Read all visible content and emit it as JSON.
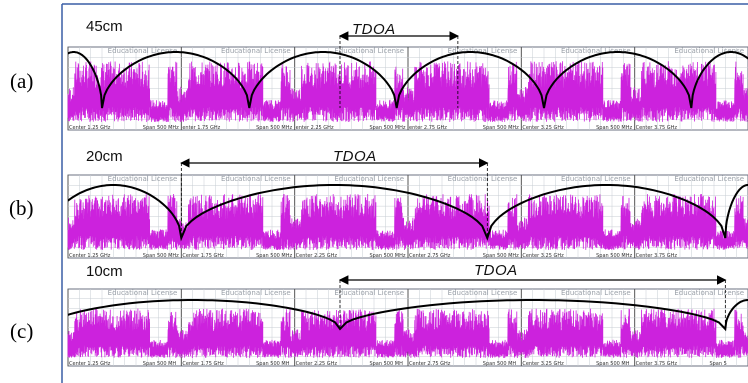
{
  "figure": {
    "watermark": "Educational License",
    "panels": [
      {
        "letter": "(a)",
        "distance": "45cm",
        "tdoa_label": "TDOA",
        "footer": [
          {
            "center": "Center 1.25 GHz",
            "span": "Span 500 MHz"
          },
          {
            "center": "enter 1.75 GHz",
            "span": "Span 500 MHz"
          },
          {
            "center": "enter 2.25 GHz",
            "span": "Span 500 MHz"
          },
          {
            "center": "enter 2.75 GHz",
            "span": "Span 500 MHz"
          },
          {
            "center": "Center 3.25 GHz",
            "span": "Span 500 MHz"
          },
          {
            "center": "Center 3.75 GHz",
            "span": ""
          }
        ]
      },
      {
        "letter": "(b)",
        "distance": "20cm",
        "tdoa_label": "TDOA",
        "footer": [
          {
            "center": "Center 1.25 GHz",
            "span": "Span 500 MHz"
          },
          {
            "center": "Center 1.75 GHz",
            "span": "Span 500 MHz"
          },
          {
            "center": "Center 2.25 GHz",
            "span": "Span 500 MHz"
          },
          {
            "center": "Center 2.75 GHz",
            "span": "Span 500 MHz"
          },
          {
            "center": "Center 3.25 GHz",
            "span": "Span 500 MHz"
          },
          {
            "center": "Center 3.75 GHz",
            "span": ""
          }
        ]
      },
      {
        "letter": "(c)",
        "distance": "10cm",
        "tdoa_label": "TDOA",
        "footer": [
          {
            "center": "Center 1.25 GHz",
            "span": "Span 500 MH"
          },
          {
            "center": "Center 1.75 GHz",
            "span": "Span 500 MH"
          },
          {
            "center": "Center 2.25 GHz",
            "span": "Span 500 MH"
          },
          {
            "center": "Center 2.75 GHz",
            "span": "Span 500 MH"
          },
          {
            "center": "Center 3.25 GHz",
            "span": "Span 500 MH"
          },
          {
            "center": "Center 3.75 GHz",
            "span": "Span 5"
          }
        ]
      }
    ]
  },
  "chart_data": {
    "type": "line",
    "x_unit": "GHz",
    "frequency_range": [
      1.0,
      4.0
    ],
    "segment_centers": [
      1.25,
      1.75,
      2.25,
      2.75,
      3.25,
      3.75
    ],
    "segment_span_mhz": 500,
    "colors": {
      "spectrum": "#cc22dd",
      "spectrum_dark": "#8e1399",
      "envelope": "#000000",
      "grid": "#c7ccd3",
      "frame": "#3a5fa6"
    },
    "series": [
      {
        "panel": "(a)",
        "distance": "45cm",
        "envelope_nulls": [
          1.15,
          1.8,
          2.45,
          3.1,
          3.75
        ]
      },
      {
        "panel": "(b)",
        "distance": "20cm",
        "envelope_nulls": [
          1.5,
          2.85,
          3.9
        ]
      },
      {
        "panel": "(c)",
        "distance": "10cm",
        "envelope_nulls": [
          2.2,
          3.9
        ]
      }
    ],
    "tdoa_markers": [
      {
        "panel": "(a)",
        "from": 2.2,
        "to": 2.72
      },
      {
        "panel": "(b)",
        "from": 1.5,
        "to": 2.85
      },
      {
        "panel": "(c)",
        "from": 2.2,
        "to": 3.9
      }
    ]
  }
}
